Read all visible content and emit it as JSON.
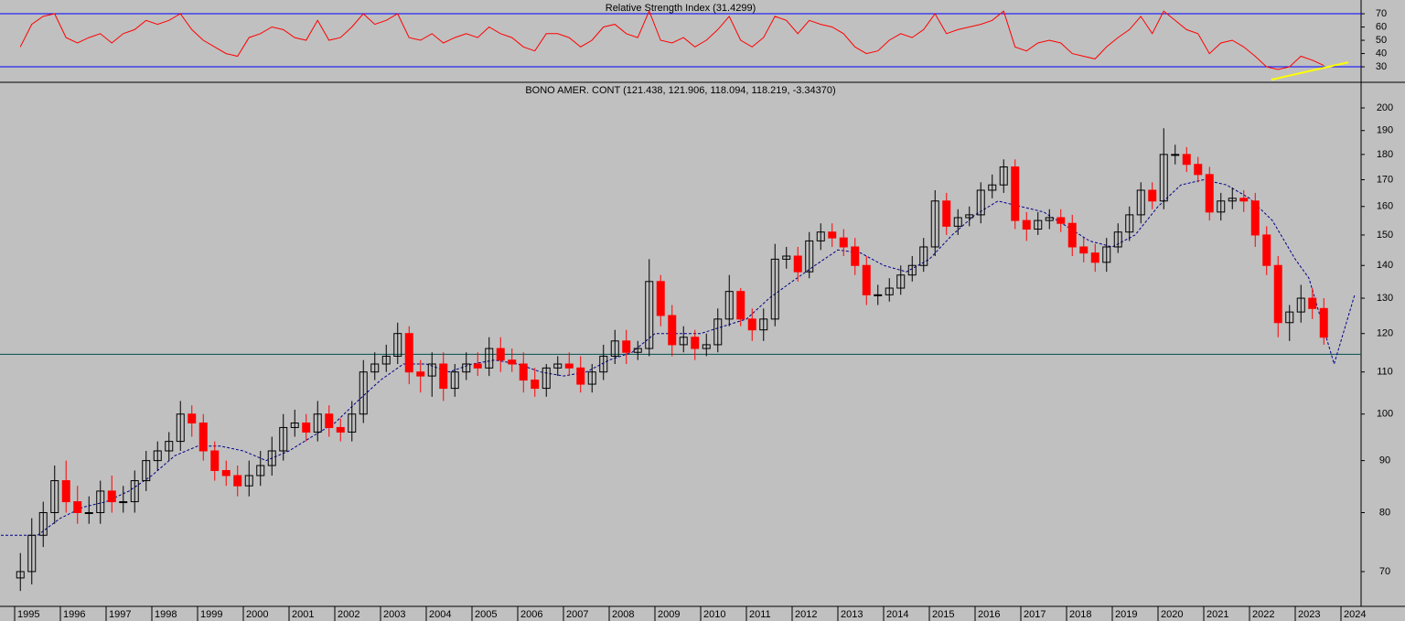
{
  "chart_data": [
    {
      "type": "line",
      "title": "Relative Strength Index (31.4299)",
      "color": "#ff0000",
      "values": [
        45,
        62,
        68,
        70,
        52,
        48,
        52,
        55,
        48,
        55,
        58,
        65,
        62,
        65,
        70,
        58,
        50,
        45,
        40,
        38,
        52,
        55,
        60,
        58,
        52,
        50,
        65,
        50,
        52,
        60,
        70,
        62,
        65,
        70,
        52,
        50,
        55,
        48,
        52,
        55,
        52,
        60,
        55,
        52,
        45,
        42,
        55,
        55,
        52,
        45,
        50,
        60,
        62,
        55,
        52,
        72,
        50,
        48,
        52,
        45,
        50,
        58,
        68,
        50,
        45,
        52,
        68,
        65,
        55,
        65,
        62,
        60,
        55,
        45,
        40,
        42,
        50,
        55,
        52,
        58,
        70,
        55,
        58,
        60,
        62,
        65,
        72,
        45,
        42,
        48,
        50,
        48,
        40,
        38,
        36,
        45,
        52,
        58,
        68,
        55,
        72,
        65,
        58,
        55,
        40,
        48,
        50,
        45,
        38,
        30,
        28,
        30,
        38,
        35,
        31
      ],
      "levels": [
        70,
        30
      ],
      "level_color": "#0000ff",
      "trendline": {
        "x": [
          2022.48,
          2024.16
        ],
        "values": [
          20.3,
          33.4
        ],
        "color": "#ffff00"
      },
      "ylim": [
        19.7,
        78.3
      ],
      "yticks": [
        30,
        40,
        50,
        60,
        70
      ]
    },
    {
      "type": "candlestick",
      "title": "BONO AMER. CONT (121.438, 121.906, 118.094, 118.219, -3.34370)",
      "x": [
        1995.125,
        1995.375,
        1995.625,
        1995.875,
        1996.125,
        1996.375,
        1996.625,
        1996.875,
        1997.125,
        1997.375,
        1997.625,
        1997.875,
        1998.125,
        1998.375,
        1998.625,
        1998.875,
        1999.125,
        1999.375,
        1999.625,
        1999.875,
        2000.125,
        2000.375,
        2000.625,
        2000.875,
        2001.125,
        2001.375,
        2001.625,
        2001.875,
        2002.125,
        2002.375,
        2002.625,
        2002.875,
        2003.125,
        2003.375,
        2003.625,
        2003.875,
        2004.125,
        2004.375,
        2004.625,
        2004.875,
        2005.125,
        2005.375,
        2005.625,
        2005.875,
        2006.125,
        2006.375,
        2006.625,
        2006.875,
        2007.125,
        2007.375,
        2007.625,
        2007.875,
        2008.125,
        2008.375,
        2008.625,
        2008.875,
        2009.125,
        2009.375,
        2009.625,
        2009.875,
        2010.125,
        2010.375,
        2010.625,
        2010.875,
        2011.125,
        2011.375,
        2011.625,
        2011.875,
        2012.125,
        2012.375,
        2012.625,
        2012.875,
        2013.125,
        2013.375,
        2013.625,
        2013.875,
        2014.125,
        2014.375,
        2014.625,
        2014.875,
        2015.125,
        2015.375,
        2015.625,
        2015.875,
        2016.125,
        2016.375,
        2016.625,
        2016.875,
        2017.125,
        2017.375,
        2017.625,
        2017.875,
        2018.125,
        2018.375,
        2018.625,
        2018.875,
        2019.125,
        2019.375,
        2019.625,
        2019.875,
        2020.125,
        2020.375,
        2020.625,
        2020.875,
        2021.125,
        2021.375,
        2021.625,
        2021.875,
        2022.125,
        2022.375,
        2022.625,
        2022.875,
        2023.125,
        2023.375,
        2023.625
      ],
      "open": [
        69,
        70,
        76,
        80,
        86,
        82,
        80,
        80,
        84,
        82,
        82,
        86,
        90,
        92,
        94,
        100,
        98,
        92,
        88,
        87,
        85,
        87,
        89,
        92,
        97,
        98,
        96,
        100,
        97,
        96,
        100,
        110,
        112,
        114,
        120,
        110,
        109,
        112,
        106,
        110,
        112,
        111,
        116,
        113,
        112,
        108,
        106,
        111,
        112,
        111,
        107,
        110,
        114,
        118,
        115,
        116,
        135,
        125,
        117,
        119,
        116,
        117,
        124,
        132,
        124,
        121,
        124,
        142,
        143,
        138,
        148,
        151,
        149,
        146,
        140,
        131,
        131,
        133,
        137,
        140,
        146,
        162,
        153,
        156,
        157,
        166,
        168,
        175,
        155,
        152,
        155,
        156,
        154,
        146,
        144,
        141,
        146,
        151,
        157,
        166,
        162,
        180,
        180,
        176,
        172,
        158,
        162,
        163,
        162,
        150,
        140,
        123,
        126,
        130,
        127
      ],
      "high": [
        73,
        79,
        82,
        89,
        90,
        85,
        83,
        86,
        87,
        85,
        88,
        92,
        94,
        96,
        103,
        102,
        100,
        94,
        90,
        89,
        90,
        92,
        95,
        100,
        101,
        100,
        103,
        102,
        99,
        103,
        113,
        115,
        117,
        123,
        122,
        113,
        115,
        115,
        112,
        115,
        115,
        119,
        119,
        116,
        115,
        111,
        112,
        114,
        115,
        114,
        112,
        117,
        121,
        121,
        118,
        142,
        137,
        128,
        122,
        121,
        120,
        127,
        137,
        133,
        127,
        127,
        147,
        146,
        146,
        151,
        154,
        154,
        152,
        149,
        143,
        134,
        136,
        140,
        143,
        149,
        166,
        165,
        159,
        160,
        169,
        172,
        178,
        178,
        158,
        158,
        159,
        159,
        157,
        149,
        147,
        149,
        154,
        160,
        169,
        169,
        191,
        184,
        183,
        179,
        175,
        165,
        167,
        166,
        165,
        153,
        143,
        128,
        134,
        133,
        130
      ],
      "low": [
        67,
        68,
        74,
        78,
        80,
        78,
        78,
        78,
        80,
        80,
        80,
        84,
        88,
        90,
        92,
        95,
        90,
        86,
        85,
        83,
        83,
        85,
        87,
        90,
        95,
        94,
        94,
        95,
        94,
        94,
        98,
        108,
        110,
        112,
        107,
        105,
        104,
        103,
        104,
        108,
        109,
        109,
        110,
        110,
        105,
        104,
        104,
        109,
        109,
        105,
        105,
        108,
        112,
        112,
        113,
        114,
        122,
        114,
        115,
        113,
        114,
        115,
        122,
        122,
        118,
        118,
        122,
        139,
        135,
        136,
        145,
        146,
        143,
        137,
        128,
        128,
        129,
        131,
        135,
        138,
        143,
        150,
        150,
        153,
        154,
        163,
        165,
        152,
        148,
        150,
        152,
        151,
        143,
        141,
        138,
        138,
        144,
        148,
        154,
        159,
        159,
        176,
        173,
        169,
        155,
        155,
        159,
        158,
        146,
        137,
        119,
        118,
        123,
        124,
        117
      ],
      "close": [
        70,
        76,
        80,
        86,
        82,
        80,
        80,
        84,
        82,
        82,
        86,
        90,
        92,
        94,
        100,
        98,
        92,
        88,
        87,
        85,
        87,
        89,
        92,
        97,
        98,
        96,
        100,
        97,
        96,
        100,
        110,
        112,
        114,
        120,
        110,
        109,
        112,
        106,
        110,
        112,
        111,
        116,
        113,
        112,
        108,
        106,
        111,
        112,
        111,
        107,
        110,
        114,
        118,
        115,
        116,
        135,
        125,
        117,
        119,
        116,
        117,
        124,
        132,
        124,
        121,
        124,
        142,
        143,
        138,
        148,
        151,
        149,
        146,
        140,
        131,
        131,
        133,
        137,
        140,
        146,
        162,
        153,
        156,
        157,
        166,
        168,
        175,
        155,
        152,
        155,
        156,
        154,
        146,
        144,
        141,
        146,
        151,
        157,
        166,
        162,
        180,
        180,
        176,
        172,
        158,
        162,
        163,
        162,
        150,
        140,
        123,
        126,
        130,
        127,
        119
      ],
      "up_color": "#000000",
      "down_color": "#ff0000",
      "ma": {
        "x": [
          1994.7,
          1995.5,
          1996,
          1996.5,
          1997,
          1997.5,
          1998,
          1998.5,
          1999,
          1999.5,
          2000,
          2000.5,
          2001,
          2001.5,
          2002,
          2002.5,
          2003,
          2003.5,
          2004,
          2004.5,
          2005,
          2005.5,
          2006,
          2006.5,
          2007,
          2007.5,
          2008,
          2008.5,
          2009,
          2009.5,
          2010,
          2010.5,
          2011,
          2011.5,
          2012,
          2012.5,
          2013,
          2013.5,
          2014,
          2014.5,
          2015,
          2015.5,
          2016,
          2016.5,
          2017,
          2017.5,
          2018,
          2018.5,
          2019,
          2019.5,
          2020,
          2020.5,
          2021,
          2021.5,
          2022,
          2022.5,
          2023,
          2023.3,
          2023.85,
          2024.3
        ],
        "values": [
          76,
          76,
          79,
          81,
          82,
          84,
          87,
          91,
          93,
          93,
          92,
          90,
          92,
          95,
          98,
          103,
          108,
          112,
          112,
          110,
          112,
          113,
          112,
          110,
          109,
          110,
          113,
          115,
          120,
          120,
          120,
          122,
          124,
          130,
          135,
          140,
          145,
          144,
          140,
          138,
          142,
          150,
          157,
          162,
          160,
          158,
          153,
          148,
          146,
          150,
          160,
          168,
          170,
          168,
          163,
          155,
          142,
          136,
          112,
          131
        ],
        "color": "#00008b"
      },
      "hline": {
        "value": 114.5,
        "color": "#005050"
      },
      "log_scale": true,
      "ylim": [
        64.7,
        211.5
      ],
      "yticks": [
        70,
        80,
        90,
        100,
        110,
        120,
        130,
        140,
        150,
        160,
        170,
        180,
        190,
        200
      ],
      "xlim": [
        1994.68,
        2024.44
      ],
      "xticks": [
        1995,
        1996,
        1997,
        1998,
        1999,
        2000,
        2001,
        2002,
        2003,
        2004,
        2005,
        2006,
        2007,
        2008,
        2009,
        2010,
        2011,
        2012,
        2013,
        2014,
        2015,
        2016,
        2017,
        2018,
        2019,
        2020,
        2021,
        2022,
        2023,
        2024
      ]
    }
  ]
}
